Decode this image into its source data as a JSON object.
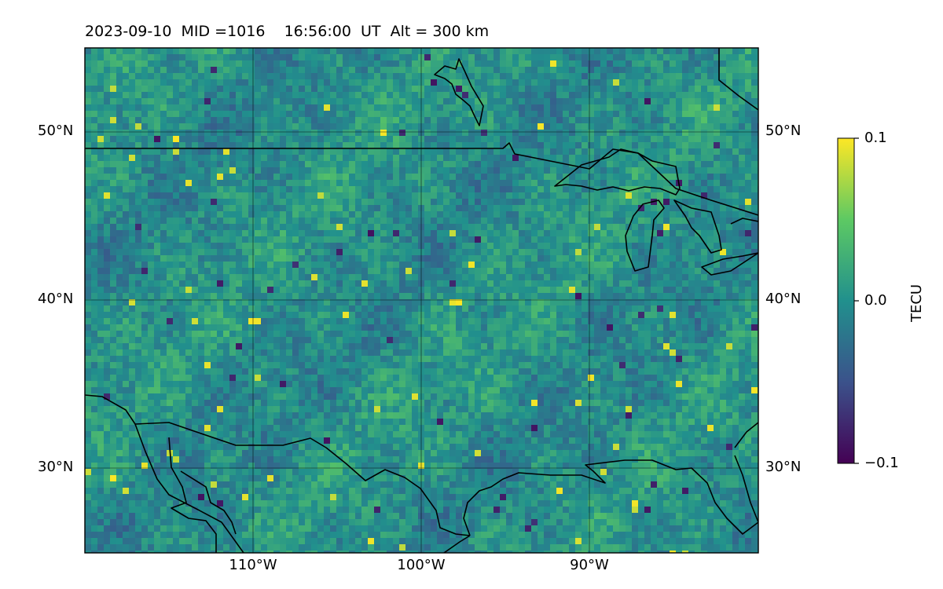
{
  "title": "2023-09-10  MID =1016    16:56:00  UT  Alt = 300 km",
  "map": {
    "variable": "TECU",
    "projection": "equirectangular",
    "lon_range": [
      -120,
      -80
    ],
    "lat_range": [
      25,
      55
    ],
    "gridlines_lon": [
      -110,
      -100,
      -90
    ],
    "gridlines_lat": [
      30,
      40,
      50
    ],
    "lat_labels": [
      "50°N",
      "40°N",
      "30°N"
    ],
    "lon_labels": [
      "110°W",
      "100°W",
      "90°W"
    ]
  },
  "colorbar": {
    "label": "TECU",
    "colormap": "viridis",
    "vmin": -0.1,
    "vmax": 0.1,
    "tick_labels": [
      "0.1",
      "0.0",
      "−0.1"
    ]
  },
  "colors": {
    "viridis_low": "#440154",
    "viridis_mid": "#21908d",
    "viridis_high": "#fde725"
  }
}
